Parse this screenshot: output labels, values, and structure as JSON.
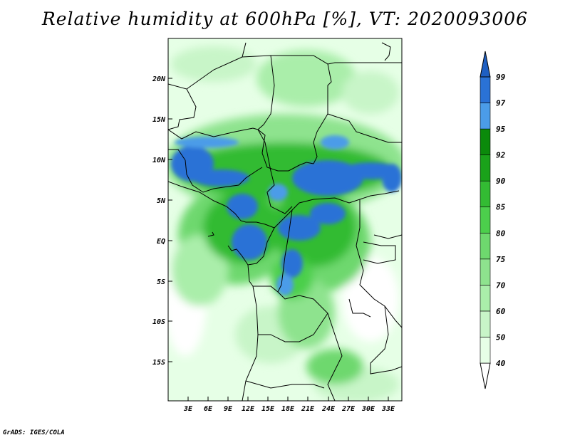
{
  "title": "Relative humidity at 600hPa [%], VT: 2020093006",
  "credit": "GrADS: IGES/COLA",
  "lat_labels": [
    "20N",
    "15N",
    "10N",
    "5N",
    "EQ",
    "5S",
    "10S",
    "15S"
  ],
  "lon_labels": [
    "3E",
    "6E",
    "9E",
    "12E",
    "15E",
    "18E",
    "21E",
    "24E",
    "27E",
    "30E",
    "33E"
  ],
  "colorbar": {
    "levels": [
      "40",
      "50",
      "60",
      "70",
      "75",
      "80",
      "85",
      "90",
      "92",
      "95",
      "97",
      "99"
    ],
    "colors": [
      "#ffffff",
      "#e6ffe6",
      "#c8f5c8",
      "#aaeeaa",
      "#8ee38e",
      "#6ed86e",
      "#4ccf4c",
      "#33bb33",
      "#1aa21a",
      "#0b8a0b",
      "#4b9ce8",
      "#2a72d6",
      "#1f5fc2"
    ]
  }
}
